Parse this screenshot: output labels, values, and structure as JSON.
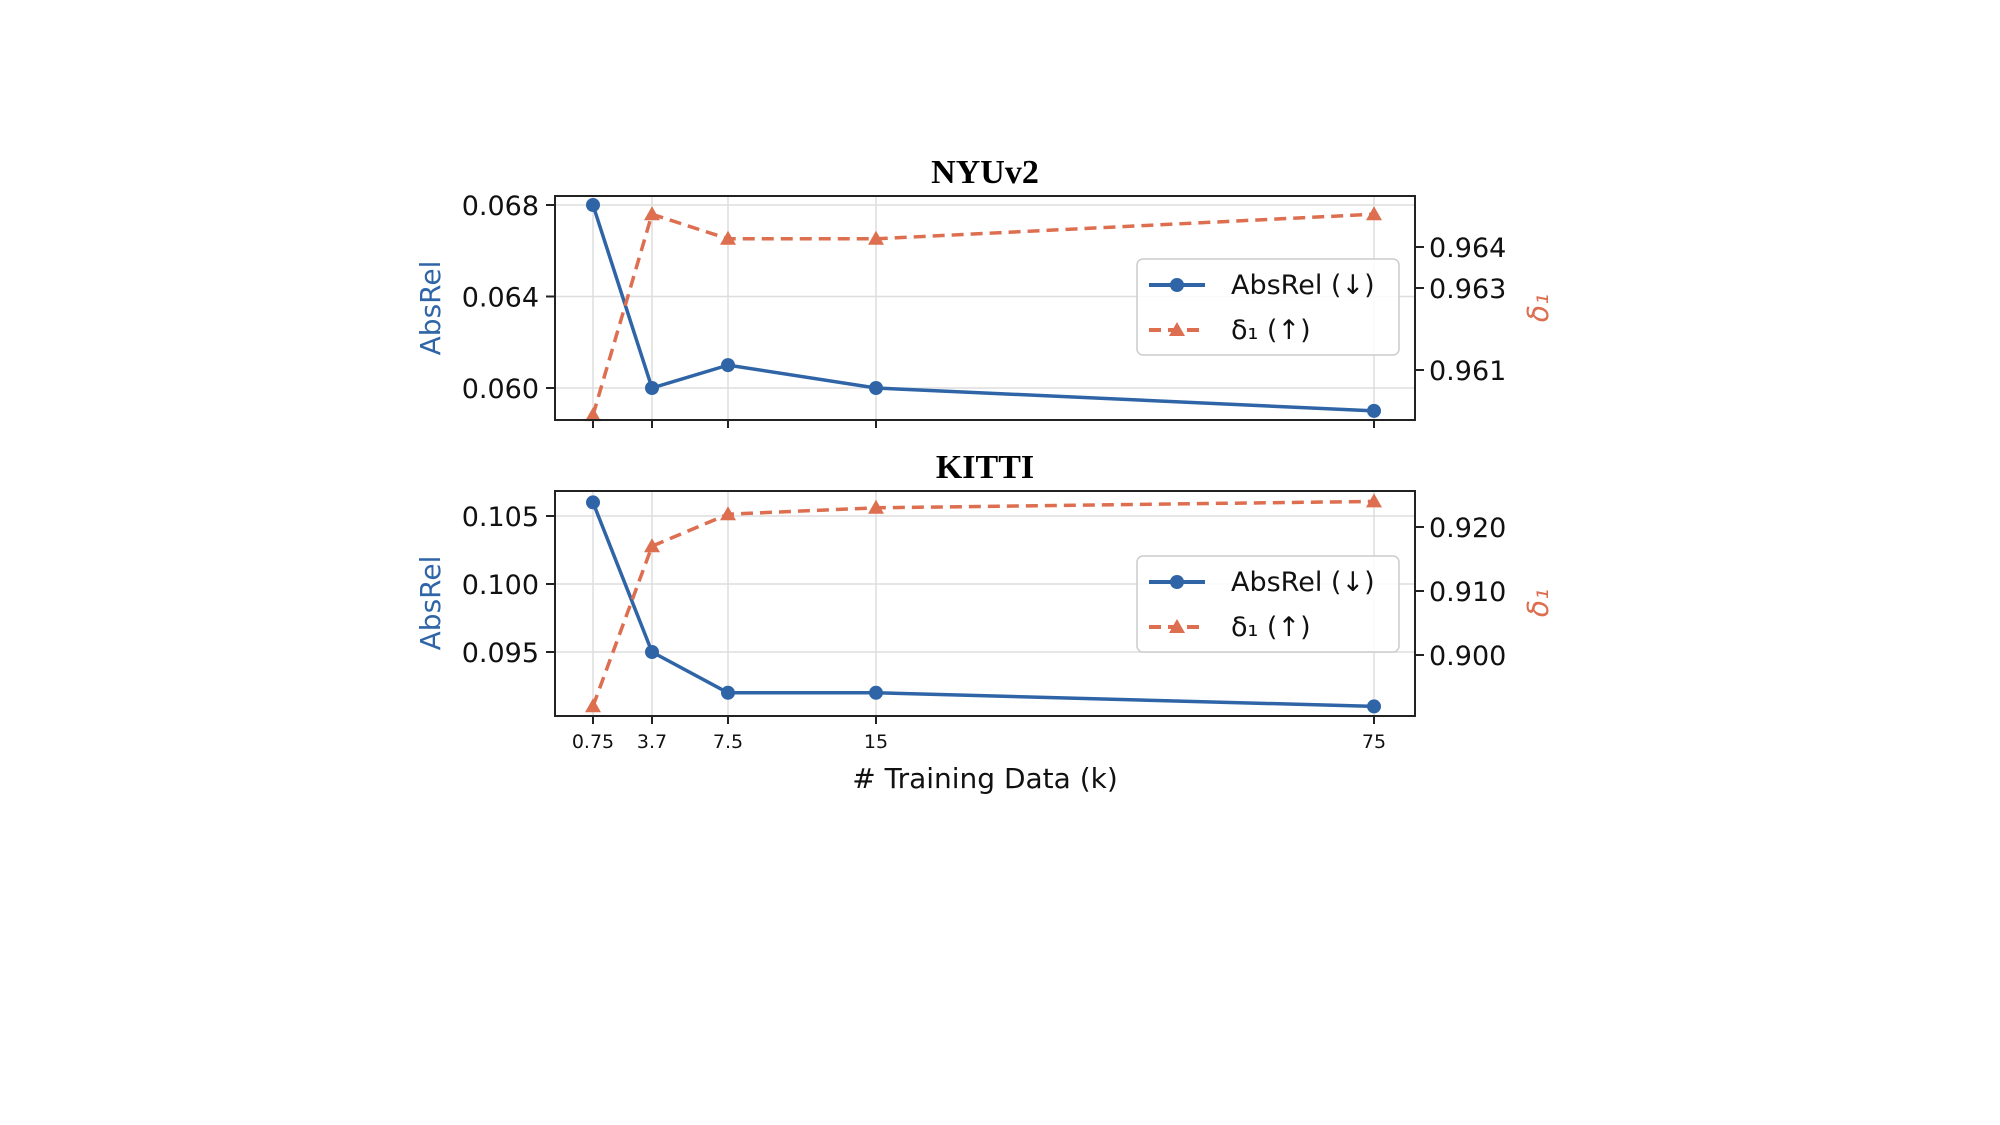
{
  "colors": {
    "absrel": "#2f65a7",
    "delta1": "#dd6e4f",
    "grid": "#dedede",
    "axes": "#222222"
  },
  "chart_data": {
    "xlabel": "# Training Data (k)",
    "x_categories": [
      "0.75",
      "3.7",
      "7.5",
      "15",
      "75"
    ],
    "grid": true,
    "legend_position": "center-right",
    "legend": [
      {
        "key": "absrel",
        "label": "AbsRel (↓)",
        "marker": "circle",
        "line": "solid"
      },
      {
        "key": "delta1",
        "label": "δ₁ (↑)",
        "marker": "triangle",
        "line": "dashed"
      }
    ],
    "panels": [
      {
        "type": "line",
        "title": "NYUv2",
        "ylabel_left": "AbsRel",
        "ylabel_right": "δ₁",
        "left_ticks": [
          "0.060",
          "0.064",
          "0.068"
        ],
        "right_ticks": [
          "0.961",
          "0.963",
          "0.964"
        ],
        "series": [
          {
            "name": "AbsRel (↓)",
            "axis": "left",
            "values": [
              0.068,
              0.06,
              0.061,
              0.06,
              0.059
            ]
          },
          {
            "name": "δ₁ (↑)",
            "axis": "right",
            "values": [
              0.9599,
              0.9648,
              0.9642,
              0.9642,
              0.9648
            ]
          }
        ]
      },
      {
        "type": "line",
        "title": "KITTI",
        "ylabel_left": "AbsRel",
        "ylabel_right": "δ₁",
        "left_ticks": [
          "0.095",
          "0.100",
          "0.105"
        ],
        "right_ticks": [
          "0.900",
          "0.910",
          "0.920"
        ],
        "series": [
          {
            "name": "AbsRel (↓)",
            "axis": "left",
            "values": [
              0.106,
              0.095,
              0.092,
              0.092,
              0.091
            ]
          },
          {
            "name": "δ₁ (↑)",
            "axis": "right",
            "values": [
              0.892,
              0.917,
              0.922,
              0.923,
              0.924
            ]
          }
        ]
      }
    ]
  }
}
